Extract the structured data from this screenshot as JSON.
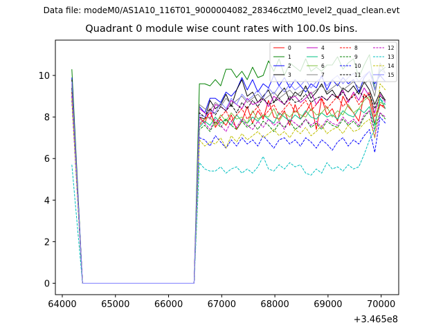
{
  "figure": {
    "suptitle": "Data file: modeM0/AS1A10_116T01_9000004082_28346cztM0_level2_quad_clean.evt",
    "title": "Quadrant 0 module wise count rates with 100.0s bins."
  },
  "chart_data": {
    "type": "line",
    "title": "Quadrant 0 module wise count rates with 100.0s bins.",
    "xlabel": "",
    "ylabel": "",
    "x_offset_label": "+3.465e8",
    "xlim": [
      63870,
      70330
    ],
    "ylim": [
      -0.55,
      11.7
    ],
    "xticks": [
      64000,
      65000,
      66000,
      67000,
      68000,
      69000,
      70000
    ],
    "xtick_labels": [
      "64000",
      "65000",
      "66000",
      "67000",
      "68000",
      "69000",
      "70000"
    ],
    "yticks": [
      0,
      2,
      4,
      6,
      8,
      10
    ],
    "ytick_labels": [
      "0",
      "2",
      "4",
      "6",
      "8",
      "10"
    ],
    "legend_position": "top-right",
    "x": [
      64180,
      64380,
      66380,
      66480,
      66580,
      66680,
      66780,
      66880,
      66980,
      67080,
      67180,
      67280,
      67380,
      67480,
      67580,
      67680,
      67780,
      67880,
      67980,
      68080,
      68180,
      68280,
      68380,
      68480,
      68580,
      68680,
      68780,
      68880,
      68980,
      69080,
      69180,
      69280,
      69380,
      69480,
      69580,
      69680,
      69780,
      69880,
      69980,
      70080
    ],
    "series": [
      {
        "name": "0",
        "color": "#ff0000",
        "dash": "solid",
        "values": [
          9.6,
          0,
          0,
          0,
          8.0,
          7.7,
          8.4,
          7.5,
          7.9,
          7.6,
          8.1,
          7.4,
          7.8,
          8.5,
          7.7,
          8.3,
          7.9,
          8.8,
          8.0,
          7.9,
          8.3,
          7.6,
          8.6,
          7.9,
          8.2,
          8.7,
          7.4,
          8.9,
          8.1,
          8.4,
          7.8,
          9.0,
          8.5,
          8.2,
          7.8,
          9.1,
          8.8,
          7.7,
          8.6,
          8.4
        ]
      },
      {
        "name": "1",
        "color": "#008000",
        "dash": "solid",
        "values": [
          10.3,
          0,
          0,
          0,
          9.6,
          9.6,
          9.5,
          9.8,
          9.5,
          10.3,
          10.3,
          9.9,
          10.2,
          9.8,
          10.4,
          9.9,
          10.0,
          10.7,
          10.2,
          10.8,
          10.0,
          10.6,
          10.4,
          10.2,
          10.8,
          10.2,
          10.4,
          10.2,
          10.5,
          10.5,
          10.9,
          10.3,
          10.6,
          10.8,
          9.9,
          10.5,
          11.0,
          9.3,
          10.2,
          10.4
        ]
      },
      {
        "name": "2",
        "color": "#0000ff",
        "dash": "solid",
        "values": [
          9.9,
          0,
          0,
          0,
          8.5,
          8.2,
          8.9,
          8.9,
          8.7,
          9.2,
          9.0,
          9.3,
          9.9,
          9.3,
          9.8,
          9.2,
          9.6,
          9.4,
          10.0,
          9.5,
          9.9,
          9.4,
          9.8,
          9.5,
          9.2,
          9.6,
          9.4,
          10.0,
          9.3,
          9.8,
          9.5,
          9.9,
          9.6,
          9.8,
          9.2,
          9.9,
          10.2,
          9.6,
          10.0,
          9.7
        ]
      },
      {
        "name": "3",
        "color": "#000000",
        "dash": "solid",
        "values": [
          9.8,
          0,
          0,
          0,
          8.0,
          7.9,
          8.8,
          8.4,
          8.6,
          9.1,
          8.5,
          9.3,
          9.8,
          9.0,
          9.2,
          8.7,
          9.0,
          9.3,
          8.7,
          9.1,
          9.4,
          8.8,
          9.2,
          9.0,
          9.5,
          8.9,
          9.2,
          9.6,
          9.1,
          9.3,
          8.9,
          9.4,
          9.2,
          9.5,
          9.1,
          9.7,
          9.3,
          8.6,
          9.2,
          8.8
        ]
      },
      {
        "name": "4",
        "color": "#c000c0",
        "dash": "solid",
        "values": [
          9.4,
          0,
          0,
          0,
          8.4,
          8.2,
          7.9,
          8.6,
          8.5,
          8.3,
          8.8,
          8.6,
          8.4,
          8.9,
          8.6,
          8.7,
          8.9,
          8.5,
          9.0,
          8.8,
          8.6,
          8.9,
          9.0,
          8.7,
          8.9,
          9.2,
          8.6,
          9.0,
          8.8,
          9.1,
          8.9,
          9.3,
          8.7,
          9.2,
          8.8,
          9.4,
          9.0,
          8.2,
          9.1,
          8.7
        ]
      },
      {
        "name": "5",
        "color": "#00c080",
        "dash": "solid",
        "values": [
          9.3,
          0,
          0,
          0,
          7.5,
          7.8,
          7.6,
          8.0,
          7.7,
          7.9,
          7.6,
          8.1,
          7.8,
          7.7,
          8.0,
          7.8,
          8.1,
          7.9,
          7.7,
          8.2,
          8.0,
          7.8,
          8.1,
          7.9,
          8.3,
          8.0,
          7.9,
          8.2,
          8.0,
          8.1,
          7.9,
          8.3,
          8.1,
          8.0,
          8.4,
          8.2,
          8.5,
          7.6,
          8.9,
          8.4
        ]
      },
      {
        "name": "6",
        "color": "#80c040",
        "dash": "solid",
        "values": [
          9.2,
          0,
          0,
          0,
          7.7,
          7.9,
          8.0,
          7.6,
          8.1,
          7.8,
          8.2,
          7.9,
          8.0,
          7.7,
          8.3,
          7.9,
          8.1,
          8.0,
          8.4,
          7.8,
          8.2,
          8.0,
          8.3,
          8.1,
          8.0,
          8.4,
          8.1,
          8.2,
          8.5,
          8.0,
          8.3,
          8.1,
          8.6,
          8.2,
          8.4,
          8.8,
          9.0,
          8.0,
          8.7,
          8.6
        ]
      },
      {
        "name": "7",
        "color": "#808080",
        "dash": "solid",
        "values": [
          9.5,
          0,
          0,
          0,
          8.6,
          8.4,
          8.3,
          8.7,
          8.5,
          8.9,
          8.6,
          8.8,
          9.0,
          8.7,
          8.9,
          9.1,
          8.8,
          9.0,
          9.2,
          8.9,
          9.1,
          9.3,
          9.0,
          9.2,
          9.4,
          9.1,
          9.3,
          9.5,
          9.2,
          9.4,
          9.6,
          9.3,
          9.5,
          9.7,
          9.4,
          9.6,
          9.8,
          9.0,
          10.6,
          10.1
        ]
      },
      {
        "name": "8",
        "color": "#ff0000",
        "dash": "dashed",
        "values": [
          9.2,
          0,
          0,
          0,
          7.6,
          7.9,
          8.2,
          7.7,
          8.0,
          8.3,
          7.8,
          8.1,
          8.4,
          7.9,
          8.2,
          8.5,
          8.0,
          8.3,
          8.6,
          8.1,
          8.4,
          8.7,
          8.2,
          8.5,
          8.8,
          8.3,
          8.6,
          8.9,
          8.4,
          8.7,
          9.0,
          8.5,
          8.8,
          9.1,
          8.6,
          8.9,
          9.2,
          8.0,
          8.6,
          8.5
        ]
      },
      {
        "name": "9",
        "color": "#008000",
        "dash": "dashed",
        "values": [
          9.0,
          0,
          0,
          0,
          7.4,
          7.6,
          7.3,
          7.8,
          7.5,
          7.9,
          7.6,
          7.4,
          7.8,
          7.5,
          7.7,
          7.4,
          7.8,
          7.6,
          7.3,
          7.7,
          7.5,
          7.8,
          7.4,
          7.6,
          7.9,
          7.5,
          7.7,
          7.4,
          7.8,
          7.6,
          7.5,
          7.9,
          7.6,
          7.8,
          7.5,
          8.0,
          8.3,
          7.4,
          8.2,
          7.9
        ]
      },
      {
        "name": "10",
        "color": "#0000ff",
        "dash": "dashed",
        "values": [
          8.8,
          0,
          0,
          0,
          7.0,
          6.9,
          6.6,
          7.1,
          6.8,
          6.5,
          6.9,
          6.6,
          7.0,
          6.7,
          6.9,
          6.6,
          7.1,
          6.8,
          6.5,
          6.9,
          7.0,
          6.7,
          6.9,
          6.6,
          7.0,
          6.8,
          6.5,
          6.9,
          6.7,
          6.4,
          6.8,
          7.0,
          6.6,
          6.9,
          6.7,
          7.1,
          7.4,
          6.3,
          8.0,
          7.7
        ]
      },
      {
        "name": "11",
        "color": "#000000",
        "dash": "dashed",
        "values": [
          9.4,
          0,
          0,
          0,
          8.2,
          8.0,
          8.4,
          8.1,
          8.5,
          8.3,
          8.6,
          8.2,
          8.7,
          8.4,
          8.8,
          8.5,
          8.9,
          8.6,
          8.7,
          8.9,
          8.6,
          9.0,
          8.7,
          8.8,
          9.1,
          8.7,
          8.9,
          9.0,
          8.8,
          9.1,
          8.9,
          9.2,
          8.8,
          9.0,
          9.3,
          8.9,
          9.1,
          8.4,
          9.0,
          8.8
        ]
      },
      {
        "name": "12",
        "color": "#c000c0",
        "dash": "dashed",
        "values": [
          9.0,
          0,
          0,
          0,
          7.9,
          7.7,
          7.4,
          7.9,
          7.6,
          7.3,
          7.8,
          7.5,
          7.9,
          7.6,
          7.4,
          7.8,
          7.5,
          7.9,
          7.6,
          7.8,
          7.4,
          7.9,
          7.7,
          7.5,
          7.9,
          7.6,
          7.8,
          7.5,
          7.9,
          7.7,
          7.6,
          8.0,
          7.7,
          7.9,
          7.6,
          8.1,
          8.3,
          7.0,
          8.2,
          8.0
        ]
      },
      {
        "name": "13",
        "color": "#00c0c0",
        "dash": "dashed",
        "values": [
          5.7,
          0,
          0,
          0,
          5.8,
          5.5,
          5.4,
          5.4,
          5.6,
          5.3,
          5.5,
          5.6,
          5.3,
          5.5,
          5.3,
          5.6,
          6.1,
          5.5,
          5.4,
          5.7,
          5.5,
          5.8,
          5.6,
          5.7,
          5.3,
          5.2,
          5.5,
          5.3,
          5.8,
          5.5,
          5.6,
          5.4,
          5.7,
          5.5,
          5.6,
          6.2,
          6.9,
          7.4,
          8.9,
          8.6
        ]
      },
      {
        "name": "14",
        "color": "#c0c000",
        "dash": "dashed",
        "values": [
          8.9,
          0,
          0,
          0,
          6.9,
          6.6,
          6.8,
          6.7,
          7.0,
          6.5,
          7.1,
          6.8,
          7.2,
          6.9,
          7.1,
          7.3,
          7.0,
          7.2,
          7.4,
          7.1,
          7.3,
          7.0,
          7.4,
          7.2,
          7.5,
          7.1,
          7.3,
          7.6,
          7.2,
          7.4,
          7.5,
          7.2,
          7.6,
          7.3,
          7.4,
          7.7,
          7.9,
          7.0,
          9.6,
          9.3
        ]
      },
      {
        "name": "15",
        "color": "#8080ff",
        "dash": "solid",
        "values": [
          9.7,
          0,
          0,
          0,
          8.1,
          8.0,
          8.3,
          8.2,
          8.7,
          8.4,
          8.9,
          8.6,
          9.1,
          8.8,
          9.0,
          9.3,
          8.9,
          9.4,
          9.1,
          9.5,
          9.2,
          9.6,
          9.3,
          9.5,
          9.8,
          9.4,
          9.7,
          9.9,
          9.5,
          9.8,
          10.0,
          9.6,
          9.9,
          10.1,
          9.7,
          10.0,
          10.2,
          9.3,
          10.3,
          10.1
        ]
      }
    ]
  }
}
